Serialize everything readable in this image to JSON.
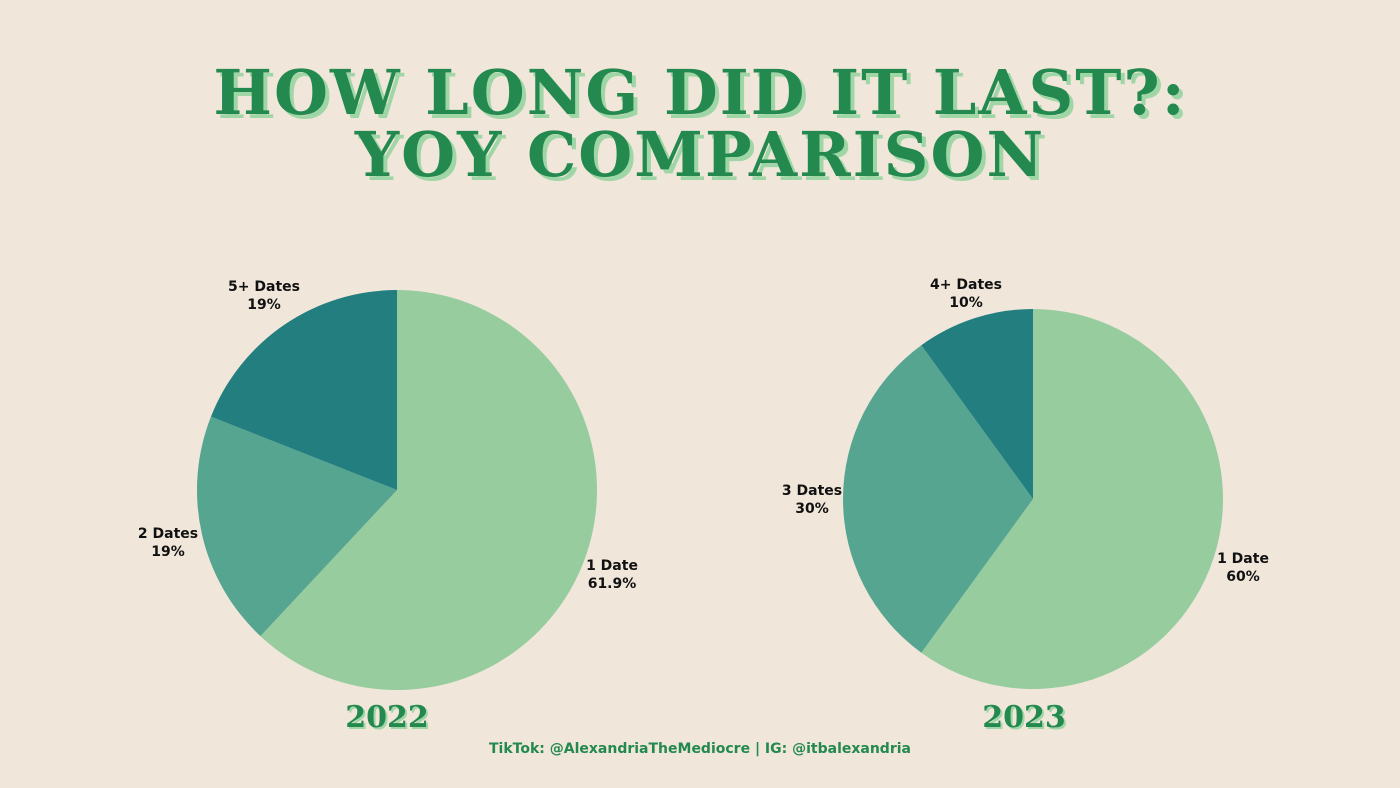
{
  "title": {
    "line1": "HOW LONG DID IT LAST?:",
    "line2": "YOY COMPARISON"
  },
  "colors": {
    "background": "#f0e6da",
    "title": "#23894f",
    "title_shadow": "#9fd6a6",
    "light_green": "#96cc9e",
    "mid_teal": "#56a590",
    "dark_teal": "#237e80"
  },
  "footer": "TikTok: @AlexandriaTheMediocre | IG: @itbalexandria",
  "chart_data": [
    {
      "type": "pie",
      "title": "2022",
      "slices": [
        {
          "label": "1 Date",
          "value": 61.9,
          "value_label": "61.9%",
          "color": "#96cc9e"
        },
        {
          "label": "2 Dates",
          "value": 19,
          "value_label": "19%",
          "color": "#56a590"
        },
        {
          "label": "5+ Dates",
          "value": 19,
          "value_label": "19%",
          "color": "#237e80"
        }
      ]
    },
    {
      "type": "pie",
      "title": "2023",
      "slices": [
        {
          "label": "1 Date",
          "value": 60,
          "value_label": "60%",
          "color": "#96cc9e"
        },
        {
          "label": "3 Dates",
          "value": 30,
          "value_label": "30%",
          "color": "#56a590"
        },
        {
          "label": "4+ Dates",
          "value": 10,
          "value_label": "10%",
          "color": "#237e80"
        }
      ]
    }
  ]
}
